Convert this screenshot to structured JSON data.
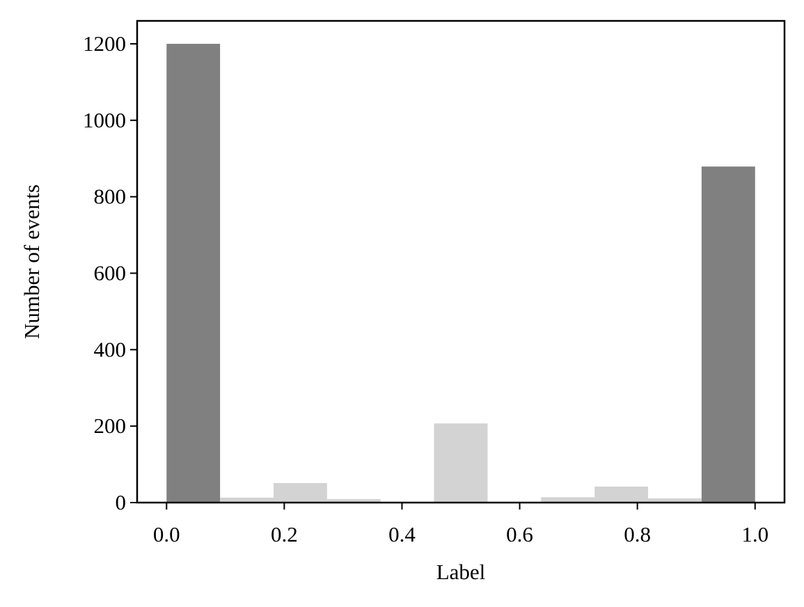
{
  "chart_data": {
    "type": "histogram",
    "xlabel": "Label",
    "ylabel": "Number of events",
    "bins": [
      0,
      0.0909,
      0.1818,
      0.2727,
      0.3636,
      0.4545,
      0.5455,
      0.6364,
      0.7273,
      0.8182,
      0.9091,
      1
    ],
    "series": [
      {
        "color": "#808080",
        "values": [
          1200,
          0,
          0,
          0,
          0,
          0,
          0,
          0,
          0,
          0,
          879
        ]
      },
      {
        "color": "#d3d3d3",
        "values": [
          0,
          13,
          51,
          9,
          0,
          207,
          0,
          14,
          42,
          11,
          0
        ]
      }
    ],
    "xlim": [
      -0.05,
      1.05
    ],
    "xticks": [
      {
        "value": 0,
        "label": "0.0"
      },
      0.2,
      0.4,
      0.6,
      0.8,
      {
        "value": 1,
        "label": "1.0"
      }
    ],
    "ylim": [
      0,
      1260
    ],
    "yticks": [
      0,
      200,
      400,
      600,
      800,
      1000,
      1200
    ]
  }
}
